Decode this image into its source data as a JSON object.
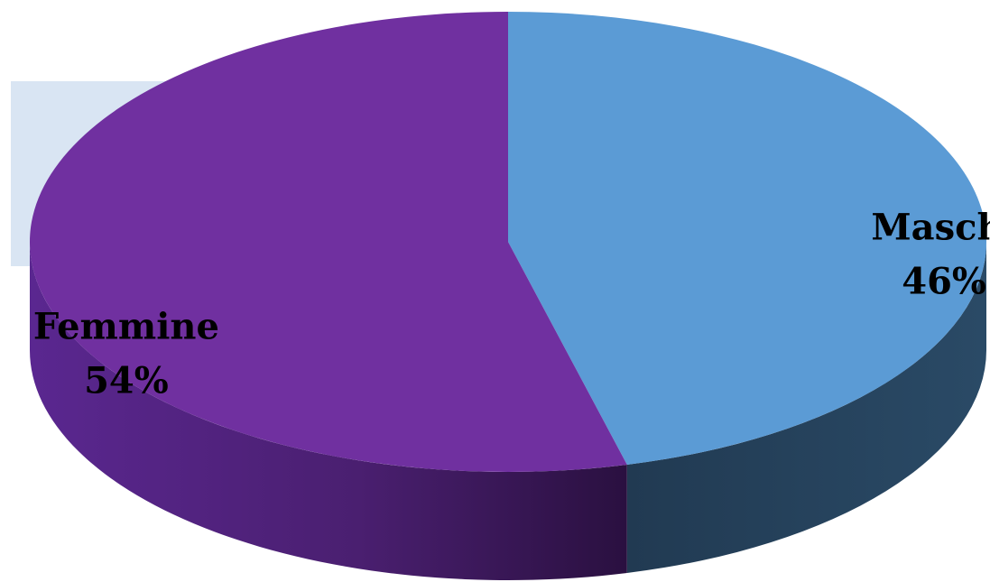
{
  "chart_data": {
    "type": "pie",
    "style": "3d",
    "title": "",
    "slices": [
      {
        "label": "Maschi",
        "value": 46,
        "value_text": "46%",
        "color": "#5b9bd5",
        "side_color": "#233f58"
      },
      {
        "label": "Femmine",
        "value": 54,
        "value_text": "54%",
        "color": "#7030a0",
        "side_color": "#4a1f6e"
      }
    ],
    "legend": "none",
    "grid": false
  }
}
